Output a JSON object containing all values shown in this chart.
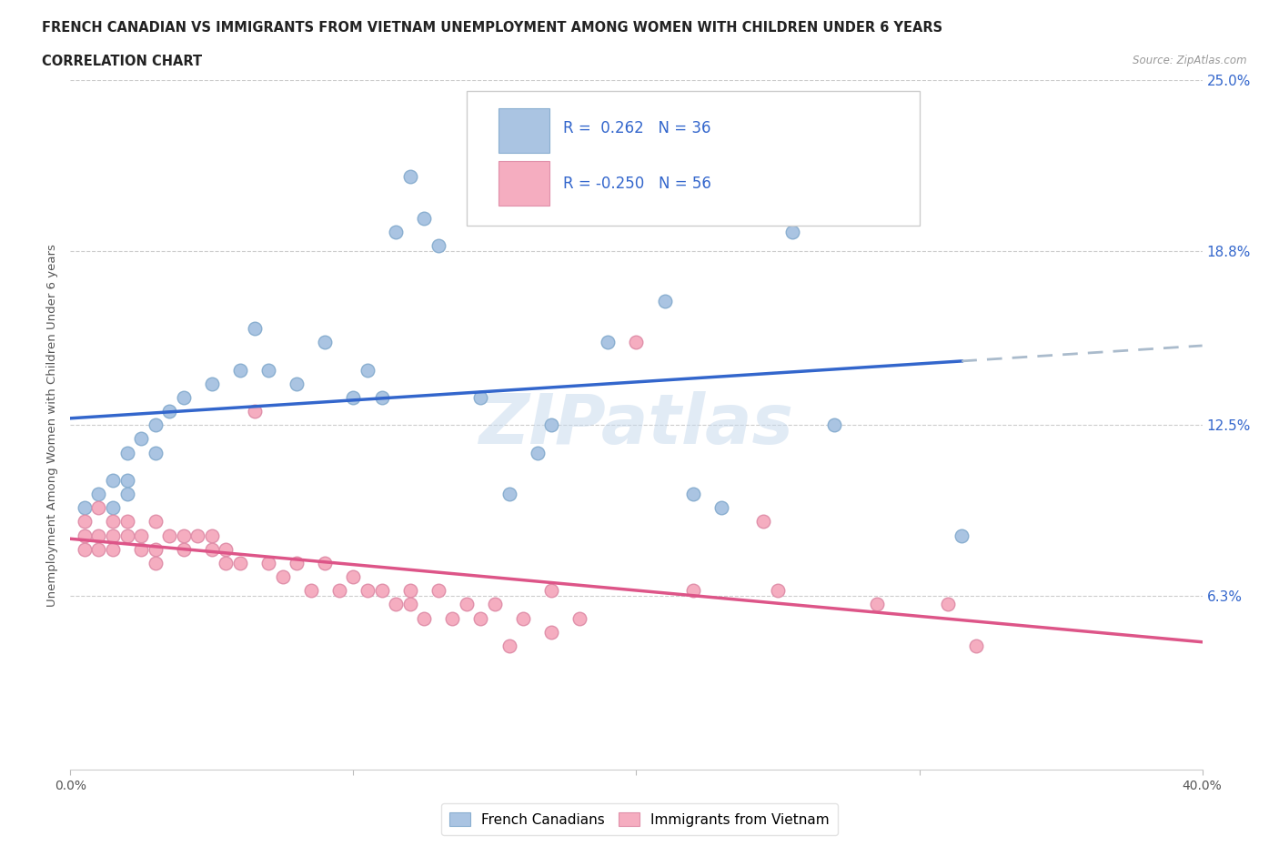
{
  "title_line1": "FRENCH CANADIAN VS IMMIGRANTS FROM VIETNAM UNEMPLOYMENT AMONG WOMEN WITH CHILDREN UNDER 6 YEARS",
  "title_line2": "CORRELATION CHART",
  "source": "Source: ZipAtlas.com",
  "ylabel": "Unemployment Among Women with Children Under 6 years",
  "xlim": [
    0.0,
    0.4
  ],
  "ylim": [
    0.0,
    0.25
  ],
  "yticks": [
    0.0,
    0.063,
    0.125,
    0.188,
    0.25
  ],
  "ytick_labels": [
    "",
    "6.3%",
    "12.5%",
    "18.8%",
    "25.0%"
  ],
  "xticks": [
    0.0,
    0.1,
    0.2,
    0.3,
    0.4
  ],
  "xtick_labels": [
    "0.0%",
    "",
    "",
    "",
    "40.0%"
  ],
  "R_blue": 0.262,
  "N_blue": 36,
  "R_pink": -0.25,
  "N_pink": 56,
  "blue_color": "#aac4e2",
  "pink_color": "#f5adc0",
  "blue_edge": "#8aafd0",
  "pink_edge": "#e090aa",
  "trend_blue": "#3366cc",
  "trend_pink": "#dd5588",
  "trend_dash": "#aabbcc",
  "watermark": "ZIPatlas",
  "blue_scatter": [
    [
      0.005,
      0.095
    ],
    [
      0.01,
      0.1
    ],
    [
      0.015,
      0.105
    ],
    [
      0.015,
      0.095
    ],
    [
      0.02,
      0.115
    ],
    [
      0.02,
      0.105
    ],
    [
      0.02,
      0.1
    ],
    [
      0.025,
      0.12
    ],
    [
      0.03,
      0.125
    ],
    [
      0.03,
      0.115
    ],
    [
      0.035,
      0.13
    ],
    [
      0.04,
      0.135
    ],
    [
      0.05,
      0.14
    ],
    [
      0.06,
      0.145
    ],
    [
      0.065,
      0.16
    ],
    [
      0.07,
      0.145
    ],
    [
      0.08,
      0.14
    ],
    [
      0.09,
      0.155
    ],
    [
      0.1,
      0.135
    ],
    [
      0.105,
      0.145
    ],
    [
      0.11,
      0.135
    ],
    [
      0.115,
      0.195
    ],
    [
      0.12,
      0.215
    ],
    [
      0.125,
      0.2
    ],
    [
      0.13,
      0.19
    ],
    [
      0.145,
      0.135
    ],
    [
      0.155,
      0.1
    ],
    [
      0.165,
      0.115
    ],
    [
      0.17,
      0.125
    ],
    [
      0.19,
      0.155
    ],
    [
      0.21,
      0.17
    ],
    [
      0.22,
      0.1
    ],
    [
      0.23,
      0.095
    ],
    [
      0.255,
      0.195
    ],
    [
      0.27,
      0.125
    ],
    [
      0.315,
      0.085
    ]
  ],
  "pink_scatter": [
    [
      0.005,
      0.09
    ],
    [
      0.005,
      0.085
    ],
    [
      0.005,
      0.08
    ],
    [
      0.01,
      0.095
    ],
    [
      0.01,
      0.085
    ],
    [
      0.01,
      0.08
    ],
    [
      0.015,
      0.09
    ],
    [
      0.015,
      0.085
    ],
    [
      0.015,
      0.08
    ],
    [
      0.02,
      0.09
    ],
    [
      0.02,
      0.085
    ],
    [
      0.025,
      0.085
    ],
    [
      0.025,
      0.08
    ],
    [
      0.03,
      0.09
    ],
    [
      0.03,
      0.08
    ],
    [
      0.03,
      0.075
    ],
    [
      0.035,
      0.085
    ],
    [
      0.04,
      0.085
    ],
    [
      0.04,
      0.08
    ],
    [
      0.045,
      0.085
    ],
    [
      0.05,
      0.085
    ],
    [
      0.05,
      0.08
    ],
    [
      0.055,
      0.08
    ],
    [
      0.055,
      0.075
    ],
    [
      0.06,
      0.075
    ],
    [
      0.065,
      0.13
    ],
    [
      0.07,
      0.075
    ],
    [
      0.075,
      0.07
    ],
    [
      0.08,
      0.075
    ],
    [
      0.085,
      0.065
    ],
    [
      0.09,
      0.075
    ],
    [
      0.095,
      0.065
    ],
    [
      0.1,
      0.07
    ],
    [
      0.105,
      0.065
    ],
    [
      0.11,
      0.065
    ],
    [
      0.115,
      0.06
    ],
    [
      0.12,
      0.065
    ],
    [
      0.12,
      0.06
    ],
    [
      0.125,
      0.055
    ],
    [
      0.13,
      0.065
    ],
    [
      0.135,
      0.055
    ],
    [
      0.14,
      0.06
    ],
    [
      0.145,
      0.055
    ],
    [
      0.15,
      0.06
    ],
    [
      0.155,
      0.045
    ],
    [
      0.16,
      0.055
    ],
    [
      0.17,
      0.065
    ],
    [
      0.17,
      0.05
    ],
    [
      0.18,
      0.055
    ],
    [
      0.2,
      0.155
    ],
    [
      0.22,
      0.065
    ],
    [
      0.245,
      0.09
    ],
    [
      0.25,
      0.065
    ],
    [
      0.285,
      0.06
    ],
    [
      0.31,
      0.06
    ],
    [
      0.32,
      0.045
    ]
  ]
}
